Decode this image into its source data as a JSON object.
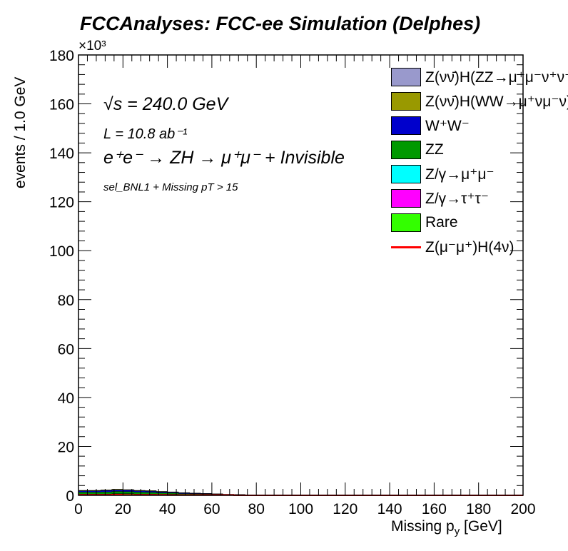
{
  "title": "FCCAnalyses: FCC-ee Simulation (Delphes)",
  "annotations": {
    "energy": "√s = 240.0 GeV",
    "lumi": "L = 10.8 ab⁻¹",
    "process": "e⁺e⁻ → ZH → μ⁺μ⁻ + Invisible",
    "selection": "sel_BNL1 + Missing pT > 15"
  },
  "chart_data": {
    "type": "area",
    "stacked": true,
    "xlabel": "Missing p_y [GeV]",
    "ylabel": "events / 1.0 GeV",
    "y_exponent_label": "×10³",
    "xlim": [
      0,
      200
    ],
    "ylim": [
      0,
      180
    ],
    "xticks": [
      0,
      20,
      40,
      60,
      80,
      100,
      120,
      140,
      160,
      180,
      200
    ],
    "yticks": [
      0,
      20,
      40,
      60,
      80,
      100,
      120,
      140,
      160,
      180
    ],
    "legend_position": "top-right",
    "grid": false,
    "x": [
      0,
      5,
      10,
      15,
      20,
      25,
      30,
      35,
      40,
      45,
      50,
      55,
      60,
      65,
      70,
      75,
      80,
      200
    ],
    "series": [
      {
        "name": "Z(νν̄)H(ZZ→μ⁺μ⁻ν⁺ν⁻)",
        "color": "#9999cc",
        "values": [
          0,
          0,
          0,
          0,
          0,
          0,
          0,
          0,
          0,
          0,
          0,
          0,
          0,
          0,
          0,
          0,
          0,
          0
        ]
      },
      {
        "name": "Z(νν̄)H(WW→μ⁺νμ⁻ν)",
        "color": "#999900",
        "values": [
          0.2,
          0.2,
          0.2,
          0.3,
          0.2,
          0.2,
          0.2,
          0.2,
          0.2,
          0.1,
          0.1,
          0.1,
          0.1,
          0,
          0,
          0,
          0,
          0
        ]
      },
      {
        "name": "W⁺W⁻",
        "color": "#0000cc",
        "values": [
          0.5,
          0.5,
          0.6,
          0.6,
          0.6,
          0.5,
          0.5,
          0.4,
          0.3,
          0.3,
          0.2,
          0.2,
          0.1,
          0.1,
          0.1,
          0,
          0,
          0
        ]
      },
      {
        "name": "ZZ",
        "color": "#009900",
        "values": [
          0.8,
          0.8,
          0.9,
          1.0,
          0.9,
          0.8,
          0.7,
          0.6,
          0.5,
          0.4,
          0.3,
          0.3,
          0.2,
          0.2,
          0.1,
          0.1,
          0,
          0
        ]
      },
      {
        "name": "Z/γ→μ⁺μ⁻",
        "color": "#00ffff",
        "values": [
          0,
          0,
          0,
          0,
          0,
          0,
          0,
          0,
          0,
          0,
          0,
          0,
          0,
          0,
          0,
          0,
          0,
          0
        ]
      },
      {
        "name": "Z/γ→τ⁺τ⁻",
        "color": "#ff00ff",
        "values": [
          0,
          0,
          0,
          0,
          0,
          0,
          0,
          0,
          0,
          0,
          0,
          0,
          0,
          0,
          0,
          0,
          0,
          0
        ]
      },
      {
        "name": "Rare",
        "color": "#33ff00",
        "values": [
          0.5,
          0.5,
          0.5,
          0.6,
          0.6,
          0.5,
          0.5,
          0.4,
          0.4,
          0.3,
          0.3,
          0.2,
          0.2,
          0.1,
          0.1,
          0.1,
          0,
          0
        ]
      }
    ],
    "signal": {
      "name": "Z(μ⁻μ⁺)H(4ν)",
      "color": "#ff0000",
      "values": [
        0.2,
        0.2,
        0.2,
        0.3,
        0.2,
        0.2,
        0.2,
        0.2,
        0.1,
        0.1,
        0.1,
        0.1,
        0.1,
        0.1,
        0,
        0,
        0,
        0
      ]
    }
  }
}
